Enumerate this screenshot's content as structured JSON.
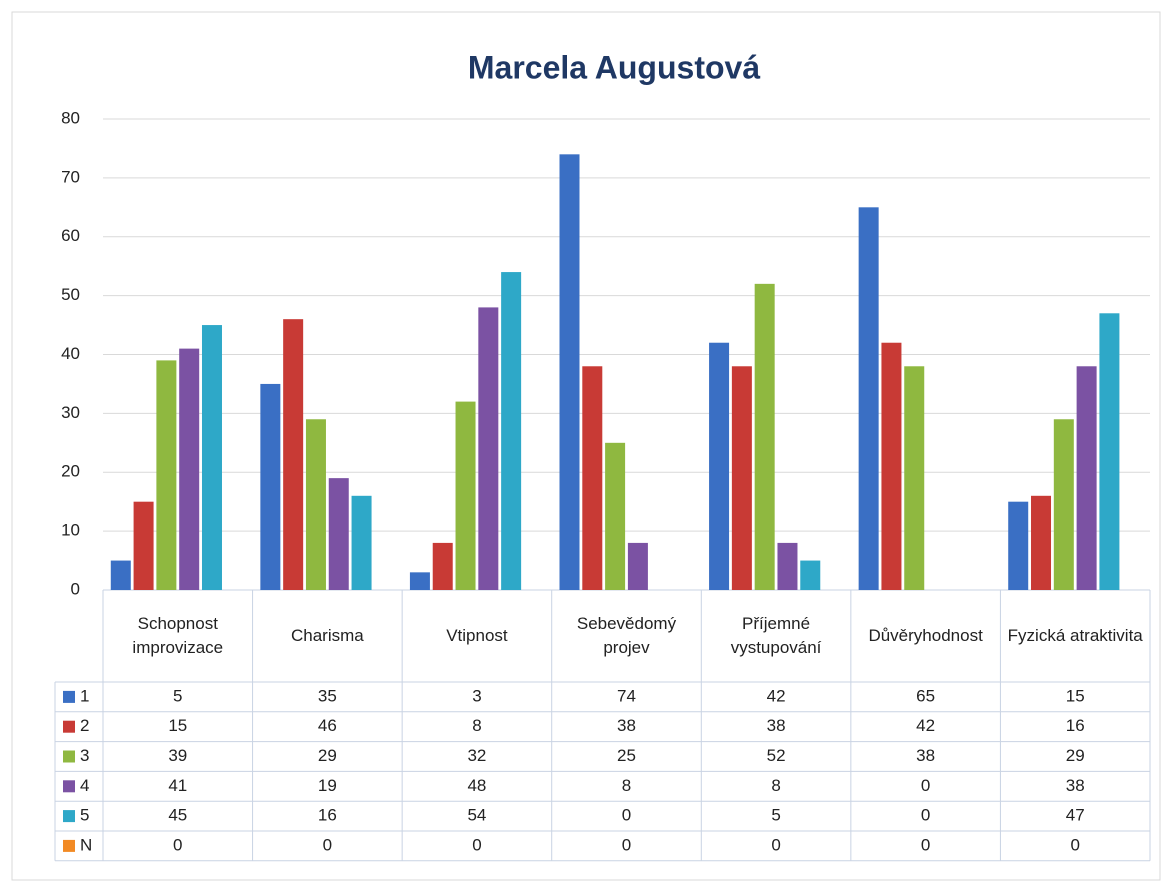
{
  "chart_data": {
    "type": "bar",
    "title": "Marcela Augustová",
    "categories": [
      "Schopnost improvizace",
      "Charisma",
      "Vtipnost",
      "Sebevědomý projev",
      "Příjemné vystupování",
      "Důvěryhodnost",
      "Fyzická atraktivita"
    ],
    "series": [
      {
        "name": "1",
        "color": "#3a6fc4",
        "values": [
          5,
          35,
          3,
          74,
          42,
          65,
          15
        ]
      },
      {
        "name": "2",
        "color": "#c83a35",
        "values": [
          15,
          46,
          8,
          38,
          38,
          42,
          16
        ]
      },
      {
        "name": "3",
        "color": "#8fb840",
        "values": [
          39,
          29,
          32,
          25,
          52,
          38,
          29
        ]
      },
      {
        "name": "4",
        "color": "#7b52a3",
        "values": [
          41,
          19,
          48,
          8,
          8,
          0,
          38
        ]
      },
      {
        "name": "5",
        "color": "#2ea8c8",
        "values": [
          45,
          16,
          54,
          0,
          5,
          0,
          47
        ]
      },
      {
        "name": "N",
        "color": "#f28a24",
        "values": [
          0,
          0,
          0,
          0,
          0,
          0,
          0
        ]
      }
    ],
    "ylim": [
      0,
      80
    ],
    "yticks": [
      0,
      10,
      20,
      30,
      40,
      50,
      60,
      70,
      80
    ],
    "grid": true
  }
}
